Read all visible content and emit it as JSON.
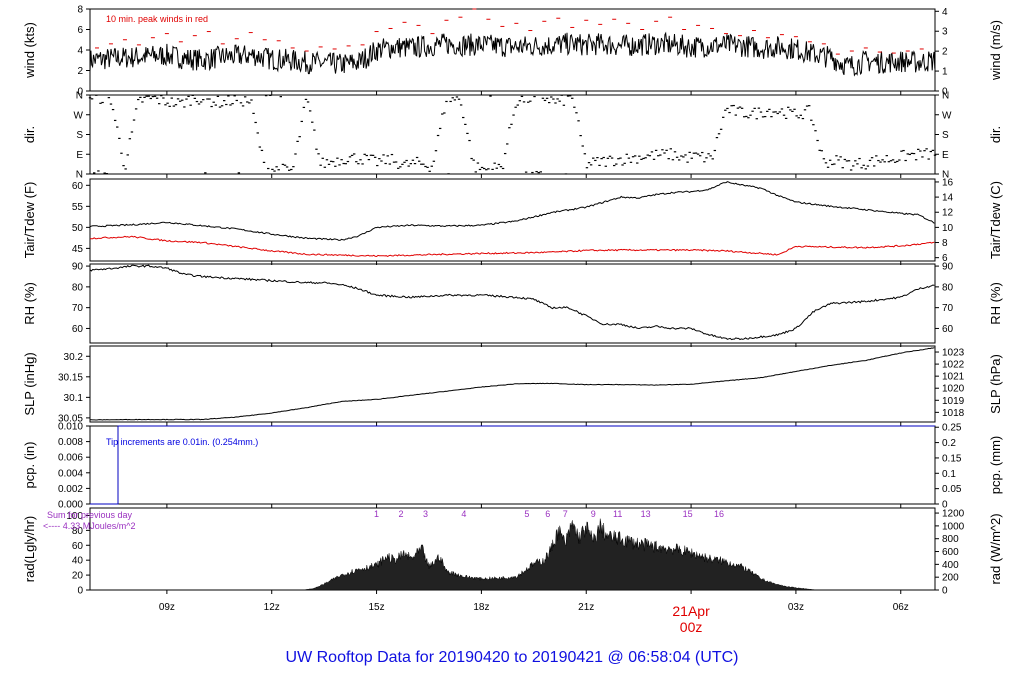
{
  "caption": "UW Rooftop Data for 20190420  to  20190421 @ 06:58:04  (UTC)",
  "colors": {
    "series": "#000000",
    "peak": "#e00000",
    "dew": "#e00000",
    "pcp": "#0000c0",
    "annotation": "#9a30c0",
    "tip_note": "#0000e0",
    "date_label": "#e00000"
  },
  "time_axis": {
    "range_hours": [
      6.8,
      30.98
    ],
    "ticks": [
      {
        "h": 9,
        "label": "09z"
      },
      {
        "h": 12,
        "label": "12z"
      },
      {
        "h": 15,
        "label": "15z"
      },
      {
        "h": 18,
        "label": "18z"
      },
      {
        "h": 21,
        "label": "21z"
      },
      {
        "h": 27,
        "label": "03z"
      },
      {
        "h": 30,
        "label": "06z"
      }
    ],
    "date_marker": {
      "h": 24,
      "line1": "21Apr",
      "line2": "00z"
    }
  },
  "chart_data": [
    {
      "type": "line",
      "id": "wind",
      "ylabel": "wind (kts)",
      "ylabel_right": "wind (m/s)",
      "ylim": [
        0,
        8
      ],
      "yticks": [
        0,
        2,
        4,
        6,
        8
      ],
      "right_ylim": [
        0,
        4.115
      ],
      "right_ticks": [
        0,
        1,
        2,
        3,
        4
      ],
      "annotation": "10 min. peak winds in red",
      "series": [
        {
          "name": "wind",
          "x": [
            6.8,
            7.5,
            8,
            8.5,
            9,
            9.5,
            10,
            10.5,
            11,
            11.5,
            12,
            12.5,
            13,
            13.5,
            14,
            14.5,
            15,
            15.5,
            16,
            16.5,
            17,
            17.5,
            18,
            18.5,
            19,
            19.5,
            20,
            20.5,
            21,
            21.5,
            22,
            22.5,
            23,
            23.5,
            24,
            24.5,
            25,
            25.5,
            26,
            26.5,
            27,
            27.5,
            28,
            28.5,
            29,
            29.5,
            30,
            30.5,
            30.98
          ],
          "y": [
            3.0,
            3.2,
            3.3,
            3.4,
            3.5,
            3.2,
            3.0,
            3.3,
            3.4,
            3.5,
            3.1,
            3.0,
            2.8,
            2.7,
            2.6,
            2.8,
            4.0,
            4.3,
            4.2,
            4.4,
            4.6,
            4.5,
            4.5,
            4.4,
            4.3,
            4.4,
            4.5,
            4.6,
            4.5,
            4.6,
            4.4,
            4.5,
            4.6,
            4.5,
            4.3,
            4.4,
            4.5,
            4.4,
            4.2,
            4.3,
            4.1,
            3.6,
            3.3,
            2.4,
            2.9,
            2.8,
            2.9,
            2.8,
            3.0
          ]
        },
        {
          "name": "10 min. peak winds",
          "x": [
            7,
            7.4,
            7.8,
            8.2,
            8.6,
            9,
            9.4,
            9.8,
            10.2,
            10.6,
            11,
            11.4,
            11.8,
            12.2,
            12.6,
            13,
            13.4,
            13.8,
            14.2,
            14.6,
            15,
            15.4,
            15.8,
            16.2,
            16.6,
            17,
            17.4,
            17.8,
            18.2,
            18.6,
            19,
            19.4,
            19.8,
            20.2,
            20.6,
            21,
            21.4,
            21.8,
            22.2,
            22.6,
            23,
            23.4,
            23.8,
            24.2,
            24.6,
            25,
            25.4,
            25.8,
            26.2,
            26.6,
            27,
            27.4,
            27.8,
            28.2,
            28.6,
            29,
            29.4,
            29.8,
            30.2,
            30.6
          ],
          "y": [
            4.2,
            4.6,
            5.0,
            4.5,
            5.2,
            5.6,
            4.8,
            5.4,
            5.8,
            4.6,
            5.1,
            5.7,
            5.0,
            4.9,
            4.2,
            3.9,
            4.3,
            4.1,
            4.4,
            4.5,
            5.8,
            6.1,
            6.7,
            6.4,
            5.6,
            6.9,
            7.2,
            8.0,
            7.0,
            6.3,
            6.6,
            5.9,
            6.8,
            7.1,
            6.2,
            6.9,
            6.5,
            7.0,
            6.6,
            6.0,
            6.8,
            7.2,
            6.0,
            6.4,
            6.1,
            5.6,
            5.4,
            5.9,
            5.2,
            5.5,
            5.3,
            4.8,
            4.6,
            3.6,
            3.9,
            4.2,
            3.8,
            3.7,
            3.9,
            4.1
          ]
        }
      ]
    },
    {
      "type": "scatter",
      "id": "dir",
      "ylabel": "dir.",
      "ylabel_right": "dir.",
      "ylim": [
        0,
        360
      ],
      "ytick_values": [
        0,
        90,
        180,
        270,
        360
      ],
      "ytick_labels": [
        "N",
        "E",
        "S",
        "W",
        "N"
      ],
      "series": [
        {
          "name": "direction",
          "x": [
            7.0,
            7.4,
            7.8,
            8.2,
            8.6,
            9.0,
            9.4,
            9.8,
            10.2,
            10.6,
            11.0,
            11.4,
            11.8,
            12.2,
            12.6,
            13.0,
            13.4,
            13.8,
            14.2,
            14.6,
            15.0,
            15.4,
            15.8,
            16.2,
            16.6,
            17.0,
            17.4,
            17.8,
            18.2,
            18.6,
            19.0,
            19.4,
            19.8,
            20.2,
            20.6,
            21.0,
            21.4,
            21.8,
            22.2,
            22.6,
            23.0,
            23.4,
            23.8,
            24.2,
            24.6,
            25.0,
            25.4,
            25.8,
            26.2,
            26.6,
            27.0,
            27.4,
            27.8,
            28.2,
            28.6,
            29.0,
            29.4,
            29.8,
            30.2,
            30.6
          ],
          "y": [
            350,
            340,
            30,
            335,
            345,
            330,
            320,
            350,
            335,
            325,
            340,
            330,
            25,
            20,
            15,
            345,
            45,
            60,
            75,
            70,
            55,
            65,
            40,
            50,
            35,
            345,
            340,
            30,
            20,
            35,
            335,
            345,
            350,
            325,
            355,
            45,
            55,
            65,
            70,
            80,
            85,
            90,
            75,
            80,
            70,
            295,
            280,
            275,
            290,
            285,
            270,
            285,
            55,
            60,
            45,
            50,
            65,
            70,
            85,
            90
          ]
        }
      ]
    },
    {
      "type": "line",
      "id": "temp",
      "ylabel": "Tair/Tdew (F)",
      "ylabel_right": "Tair/Tdew (C)",
      "ylim": [
        42,
        61.5
      ],
      "yticks": [
        45,
        50,
        55,
        60
      ],
      "right_ylim": [
        5.56,
        16.39
      ],
      "right_ticks": [
        6,
        8,
        10,
        12,
        14,
        16
      ],
      "series": [
        {
          "name": "Tair",
          "x": [
            6.8,
            8,
            9,
            10,
            11,
            12,
            13,
            14,
            14.5,
            15,
            16,
            17,
            18,
            19,
            20,
            21,
            21.5,
            22,
            22.5,
            23,
            23.5,
            24,
            24.5,
            25,
            25.5,
            26,
            26.5,
            27,
            28,
            29,
            30,
            30.5,
            30.98
          ],
          "y": [
            50.2,
            50.6,
            51.2,
            50.4,
            49.6,
            48.4,
            47.4,
            47.0,
            48.0,
            50.0,
            50.5,
            50.3,
            50.5,
            51.5,
            53.5,
            54.8,
            56.0,
            57.2,
            57.0,
            57.8,
            58.3,
            58.5,
            59.0,
            60.8,
            60.0,
            59.3,
            57.5,
            56.0,
            55.0,
            54.2,
            53.3,
            53.0,
            51.0
          ]
        },
        {
          "name": "Tdew",
          "x": [
            6.8,
            8,
            9,
            10,
            11,
            12,
            13,
            14,
            15,
            16,
            17,
            18,
            19,
            20,
            21,
            22,
            23,
            24,
            25,
            26,
            26.5,
            27,
            28,
            29,
            30,
            30.98
          ],
          "y": [
            47.4,
            47.8,
            46.8,
            46.4,
            45.4,
            44.4,
            43.6,
            43.4,
            43.2,
            43.4,
            43.6,
            43.8,
            43.9,
            44.1,
            44.5,
            44.6,
            44.6,
            44.6,
            44.4,
            43.8,
            43.5,
            45.5,
            45.3,
            45.2,
            45.6,
            46.4
          ]
        }
      ]
    },
    {
      "type": "line",
      "id": "rh",
      "ylabel": "RH (%)",
      "ylabel_right": "RH (%)",
      "ylim": [
        53,
        91
      ],
      "yticks": [
        60,
        70,
        80,
        90
      ],
      "right_ticks": [
        60,
        70,
        80,
        90
      ],
      "series": [
        {
          "name": "RH",
          "x": [
            6.8,
            7.5,
            8,
            8.5,
            9,
            9.5,
            10,
            11,
            12,
            13,
            13.5,
            14,
            14.5,
            15,
            16,
            17,
            18,
            19,
            19.5,
            20,
            20.5,
            21,
            21.5,
            22,
            22.5,
            23,
            23.5,
            24,
            24.5,
            25,
            25.5,
            26,
            26.5,
            27,
            27.5,
            28,
            29,
            30,
            30.5,
            30.98
          ],
          "y": [
            88,
            89,
            90,
            90,
            89,
            86,
            85,
            84,
            83,
            82,
            82,
            81,
            79,
            76,
            75,
            76,
            76,
            75,
            74,
            70,
            70,
            66,
            62,
            62,
            60,
            61,
            60,
            60,
            57,
            55,
            55,
            56,
            57,
            60,
            68,
            72,
            73,
            75,
            79,
            81
          ]
        }
      ]
    },
    {
      "type": "line",
      "id": "slp",
      "ylabel": "SLP (inHg)",
      "ylabel_right": "SLP (hPa)",
      "ylim": [
        30.04,
        30.225
      ],
      "yticks": [
        30.05,
        30.1,
        30.15,
        30.2
      ],
      "right_ylim": [
        1017.2,
        1023.5
      ],
      "right_ticks": [
        1018,
        1019,
        1020,
        1021,
        1022,
        1023
      ],
      "series": [
        {
          "name": "SLP",
          "x": [
            6.8,
            8,
            9,
            10,
            11,
            12,
            13,
            14,
            15,
            16,
            17,
            18,
            19,
            20,
            21,
            22,
            23,
            24,
            25,
            26,
            27,
            28,
            29,
            30,
            30.98
          ],
          "y": [
            30.045,
            30.046,
            30.046,
            30.046,
            30.052,
            30.062,
            30.075,
            30.09,
            30.095,
            30.105,
            30.115,
            30.125,
            30.133,
            30.134,
            30.131,
            30.131,
            30.13,
            30.132,
            30.14,
            30.148,
            30.163,
            30.178,
            30.19,
            30.208,
            30.221
          ]
        }
      ]
    },
    {
      "type": "line",
      "id": "pcp",
      "ylabel": "pcp. (in)",
      "ylabel_right": "pcp. (mm)",
      "ylim": [
        0,
        0.01
      ],
      "yticks": [
        0,
        0.002,
        0.004,
        0.006,
        0.008,
        0.01
      ],
      "ytick_labels": [
        "0.000",
        "0.002",
        "0.004",
        "0.006",
        "0.008",
        "0.010"
      ],
      "right_ylim": [
        0,
        0.254
      ],
      "right_ticks": [
        0,
        0.05,
        0.1,
        0.15,
        0.2,
        0.25
      ],
      "annotation": "Tip increments are 0.01in. (0.254mm.)",
      "series": [
        {
          "name": "precip",
          "x": [
            6.8,
            7.6,
            7.6,
            30.98
          ],
          "y": [
            0,
            0,
            0.01,
            0.01
          ]
        }
      ]
    },
    {
      "type": "area",
      "id": "rad",
      "ylabel": "rad(Lgly/hr)",
      "ylabel_right": "rad (W/m^2)",
      "ylim": [
        0,
        110
      ],
      "yticks": [
        0,
        20,
        40,
        60,
        80,
        100
      ],
      "right_ylim": [
        0,
        1279
      ],
      "right_ticks": [
        0,
        200,
        400,
        600,
        800,
        1000,
        1200
      ],
      "annotation_left": [
        "Sum for previous day",
        "<---- 4.33 MJoules/m^2"
      ],
      "top_marks": [
        {
          "h": 15.0,
          "label": "1"
        },
        {
          "h": 15.7,
          "label": "2"
        },
        {
          "h": 16.4,
          "label": "3"
        },
        {
          "h": 17.5,
          "label": "4"
        },
        {
          "h": 19.3,
          "label": "5"
        },
        {
          "h": 19.9,
          "label": "6"
        },
        {
          "h": 20.4,
          "label": "7"
        },
        {
          "h": 21.2,
          "label": "9"
        },
        {
          "h": 21.9,
          "label": "11"
        },
        {
          "h": 22.7,
          "label": "13"
        },
        {
          "h": 23.9,
          "label": "15"
        },
        {
          "h": 24.8,
          "label": "16"
        }
      ],
      "series": [
        {
          "name": "radiation",
          "x": [
            12.9,
            13.2,
            13.5,
            14.0,
            14.5,
            15.0,
            15.3,
            15.5,
            15.8,
            16.0,
            16.3,
            16.5,
            16.8,
            17.0,
            17.5,
            18.0,
            18.5,
            19.0,
            19.3,
            19.5,
            19.8,
            20.0,
            20.2,
            20.4,
            20.6,
            20.8,
            21.0,
            21.2,
            21.4,
            21.6,
            21.8,
            22.0,
            22.5,
            23.0,
            23.5,
            24.0,
            24.5,
            25.0,
            25.5,
            26.0,
            26.4,
            26.8,
            27.2,
            27.6
          ],
          "y": [
            0,
            2,
            8,
            20,
            28,
            33,
            45,
            40,
            48,
            42,
            55,
            30,
            45,
            25,
            18,
            15,
            16,
            18,
            28,
            35,
            40,
            55,
            80,
            62,
            88,
            70,
            84,
            65,
            85,
            72,
            70,
            68,
            62,
            58,
            55,
            50,
            42,
            38,
            30,
            15,
            8,
            4,
            2,
            0
          ]
        }
      ]
    }
  ]
}
